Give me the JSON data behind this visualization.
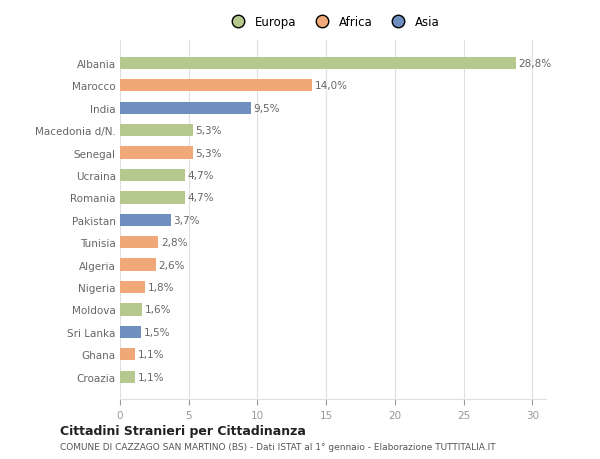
{
  "categories": [
    "Albania",
    "Marocco",
    "India",
    "Macedonia d/N.",
    "Senegal",
    "Ucraina",
    "Romania",
    "Pakistan",
    "Tunisia",
    "Algeria",
    "Nigeria",
    "Moldova",
    "Sri Lanka",
    "Ghana",
    "Croazia"
  ],
  "values": [
    28.8,
    14.0,
    9.5,
    5.3,
    5.3,
    4.7,
    4.7,
    3.7,
    2.8,
    2.6,
    1.8,
    1.6,
    1.5,
    1.1,
    1.1
  ],
  "labels": [
    "28,8%",
    "14,0%",
    "9,5%",
    "5,3%",
    "5,3%",
    "4,7%",
    "4,7%",
    "3,7%",
    "2,8%",
    "2,6%",
    "1,8%",
    "1,6%",
    "1,5%",
    "1,1%",
    "1,1%"
  ],
  "continent": [
    "Europa",
    "Africa",
    "Asia",
    "Europa",
    "Africa",
    "Europa",
    "Europa",
    "Asia",
    "Africa",
    "Africa",
    "Africa",
    "Europa",
    "Asia",
    "Africa",
    "Europa"
  ],
  "colors": {
    "Europa": "#b5c98e",
    "Africa": "#f0a878",
    "Asia": "#6f8fbf"
  },
  "legend_labels": [
    "Europa",
    "Africa",
    "Asia"
  ],
  "title": "Cittadini Stranieri per Cittadinanza",
  "subtitle": "COMUNE DI CAZZAGO SAN MARTINO (BS) - Dati ISTAT al 1° gennaio - Elaborazione TUTTITALIA.IT",
  "xlim": [
    0,
    31
  ],
  "xticks": [
    0,
    5,
    10,
    15,
    20,
    25,
    30
  ],
  "chart_bg_color": "#ffffff",
  "fig_bg_color": "#ffffff",
  "grid_color": "#e0e0e0",
  "label_color": "#666666",
  "tick_color": "#999999"
}
